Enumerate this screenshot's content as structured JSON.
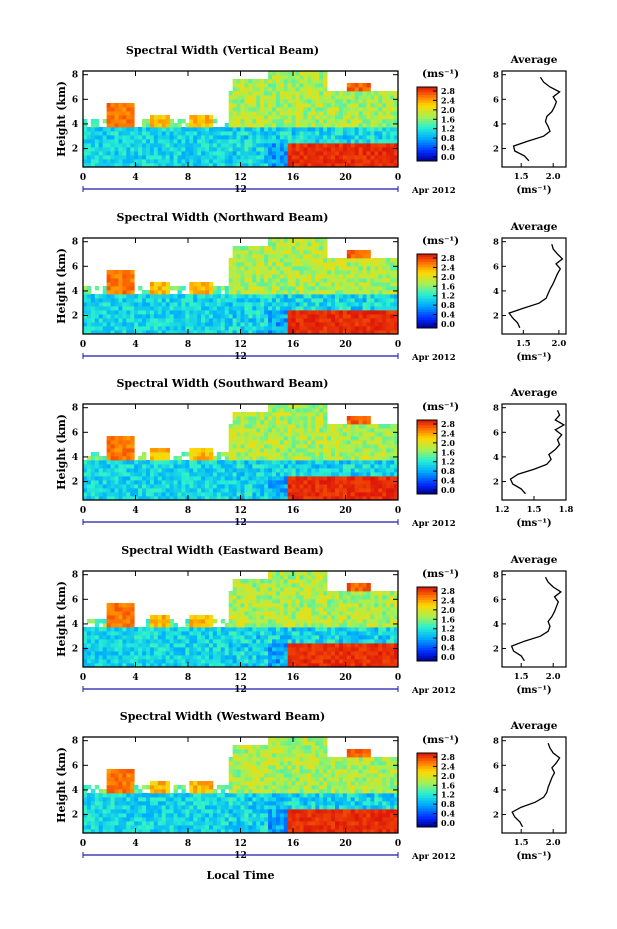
{
  "chart_data": [
    {
      "type": "heatmap",
      "title": "Spectral Width (Vertical Beam)",
      "ylabel": "Height (km)",
      "y_ticks": [
        "2",
        "4",
        "6",
        "8"
      ],
      "x_ticks": [
        "0",
        "4",
        "8",
        "12",
        "16",
        "20",
        "0"
      ],
      "date_row": {
        "left": "12",
        "right": "Apr 2012"
      },
      "colorbar": {
        "unit": "(ms⁻¹)",
        "ticks": [
          "2.8",
          "2.4",
          "2.0",
          "1.6",
          "1.2",
          "0.8",
          "0.4",
          "0.0"
        ],
        "range": [
          0.0,
          2.8
        ]
      },
      "avg_title": "Average",
      "avg_xticks": [
        "1.5",
        "2.0"
      ],
      "avg_xlim": [
        1.2,
        2.2
      ],
      "avg_yticks": [
        "2",
        "4",
        "6",
        "8"
      ],
      "avg_xlabel": "(ms⁻¹)",
      "avg_profile": {
        "height_km": [
          1.0,
          1.4,
          1.8,
          2.2,
          2.6,
          3.0,
          3.4,
          3.8,
          4.2,
          4.6,
          5.0,
          5.4,
          5.8,
          6.2,
          6.6,
          7.0,
          7.4,
          7.8
        ],
        "width_ms": [
          1.62,
          1.55,
          1.4,
          1.38,
          1.6,
          1.85,
          1.95,
          1.92,
          1.88,
          1.9,
          1.98,
          2.02,
          2.05,
          2.0,
          2.1,
          1.95,
          1.85,
          1.8
        ]
      }
    },
    {
      "type": "heatmap",
      "title": "Spectral Width (Northward Beam)",
      "ylabel": "Height (km)",
      "y_ticks": [
        "2",
        "4",
        "6",
        "8"
      ],
      "x_ticks": [
        "0",
        "4",
        "8",
        "12",
        "16",
        "20",
        "0"
      ],
      "date_row": {
        "left": "12",
        "right": "Apr 2012"
      },
      "colorbar": {
        "unit": "(ms⁻¹)",
        "ticks": [
          "2.8",
          "2.4",
          "2.0",
          "1.6",
          "1.2",
          "0.8",
          "0.4",
          "0.0"
        ],
        "range": [
          0.0,
          2.8
        ]
      },
      "avg_title": "Average",
      "avg_xticks": [
        "1.5",
        "2.0"
      ],
      "avg_xlim": [
        1.2,
        2.1
      ],
      "avg_yticks": [
        "2",
        "4",
        "6",
        "8"
      ],
      "avg_xlabel": "(ms⁻¹)",
      "avg_profile": {
        "height_km": [
          1.0,
          1.4,
          1.8,
          2.2,
          2.6,
          3.0,
          3.4,
          3.8,
          4.2,
          4.6,
          5.0,
          5.4,
          5.8,
          6.2,
          6.6,
          7.0,
          7.4,
          7.8
        ],
        "width_ms": [
          1.45,
          1.42,
          1.35,
          1.3,
          1.5,
          1.72,
          1.82,
          1.85,
          1.88,
          1.92,
          1.95,
          1.98,
          2.02,
          1.96,
          2.05,
          1.98,
          1.92,
          1.9
        ]
      }
    },
    {
      "type": "heatmap",
      "title": "Spectral Width (Southward Beam)",
      "ylabel": "Height (km)",
      "y_ticks": [
        "2",
        "4",
        "6",
        "8"
      ],
      "x_ticks": [
        "0",
        "4",
        "8",
        "12",
        "16",
        "20",
        "0"
      ],
      "date_row": {
        "left": "12",
        "right": "Apr 2012"
      },
      "colorbar": {
        "unit": "(ms⁻¹)",
        "ticks": [
          "2.8",
          "2.4",
          "2.0",
          "1.6",
          "1.2",
          "0.8",
          "0.4",
          "0.0"
        ],
        "range": [
          0.0,
          2.8
        ]
      },
      "avg_title": "Average",
      "avg_xticks": [
        "1.2",
        "1.5",
        "1.8"
      ],
      "avg_xlim": [
        1.2,
        1.8
      ],
      "avg_yticks": [
        "2",
        "4",
        "6",
        "8"
      ],
      "avg_xlabel": "(ms⁻¹)",
      "avg_profile": {
        "height_km": [
          1.0,
          1.4,
          1.8,
          2.2,
          2.6,
          3.0,
          3.4,
          3.8,
          4.2,
          4.6,
          5.0,
          5.4,
          5.8,
          6.2,
          6.6,
          7.0,
          7.4,
          7.8
        ],
        "width_ms": [
          1.42,
          1.38,
          1.3,
          1.28,
          1.35,
          1.5,
          1.62,
          1.66,
          1.64,
          1.7,
          1.74,
          1.72,
          1.76,
          1.7,
          1.78,
          1.7,
          1.74,
          1.72
        ]
      }
    },
    {
      "type": "heatmap",
      "title": "Spectral Width (Eastward Beam)",
      "ylabel": "Height (km)",
      "y_ticks": [
        "2",
        "4",
        "6",
        "8"
      ],
      "x_ticks": [
        "0",
        "4",
        "8",
        "12",
        "16",
        "20",
        "0"
      ],
      "date_row": {
        "left": "12",
        "right": "Apr 2012"
      },
      "colorbar": {
        "unit": "(ms⁻¹)",
        "ticks": [
          "2.8",
          "2.4",
          "2.0",
          "1.6",
          "1.2",
          "0.8",
          "0.4",
          "0.0"
        ],
        "range": [
          0.0,
          2.8
        ]
      },
      "avg_title": "Average",
      "avg_xticks": [
        "1.5",
        "2.0"
      ],
      "avg_xlim": [
        1.2,
        2.2
      ],
      "avg_yticks": [
        "2",
        "4",
        "6",
        "8"
      ],
      "avg_xlabel": "(ms⁻¹)",
      "avg_profile": {
        "height_km": [
          1.0,
          1.4,
          1.8,
          2.2,
          2.6,
          3.0,
          3.4,
          3.8,
          4.2,
          4.6,
          5.0,
          5.4,
          5.8,
          6.2,
          6.6,
          7.0,
          7.4,
          7.8
        ],
        "width_ms": [
          1.55,
          1.5,
          1.38,
          1.35,
          1.55,
          1.8,
          1.92,
          1.95,
          1.92,
          1.98,
          2.02,
          2.05,
          2.08,
          2.02,
          2.12,
          2.0,
          1.92,
          1.88
        ]
      }
    },
    {
      "type": "heatmap",
      "title": "Spectral Width (Westward Beam)",
      "ylabel": "Height (km)",
      "y_ticks": [
        "2",
        "4",
        "6",
        "8"
      ],
      "x_ticks": [
        "0",
        "4",
        "8",
        "12",
        "16",
        "20",
        "0"
      ],
      "date_row": {
        "left": "12",
        "right": "Apr 2012"
      },
      "xlabel": "Local Time",
      "colorbar": {
        "unit": "(ms⁻¹)",
        "ticks": [
          "2.8",
          "2.4",
          "2.0",
          "1.6",
          "1.2",
          "0.8",
          "0.4",
          "0.0"
        ],
        "range": [
          0.0,
          2.8
        ]
      },
      "avg_title": "Average",
      "avg_xticks": [
        "1.5",
        "2.0"
      ],
      "avg_xlim": [
        1.2,
        2.2
      ],
      "avg_yticks": [
        "2",
        "4",
        "6",
        "8"
      ],
      "avg_xlabel": "(ms⁻¹)",
      "avg_profile": {
        "height_km": [
          1.0,
          1.4,
          1.8,
          2.2,
          2.6,
          3.0,
          3.4,
          3.8,
          4.2,
          4.6,
          5.0,
          5.4,
          5.8,
          6.2,
          6.6,
          7.0,
          7.4,
          7.8
        ],
        "width_ms": [
          1.52,
          1.48,
          1.4,
          1.36,
          1.5,
          1.72,
          1.85,
          1.9,
          1.92,
          1.95,
          1.98,
          2.02,
          1.98,
          2.05,
          2.1,
          2.0,
          1.95,
          1.92
        ]
      }
    }
  ]
}
